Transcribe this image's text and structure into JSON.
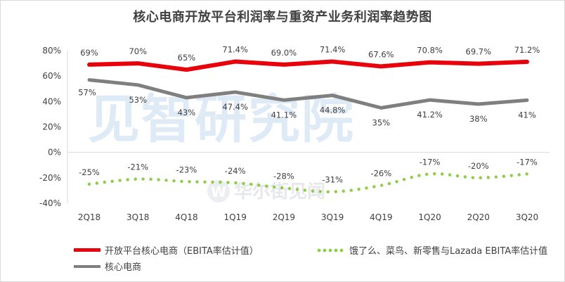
{
  "chart_data": {
    "type": "line",
    "title": "核心电商开放平台利润率与重资产业务利润率趋势图",
    "categories": [
      "2Q18",
      "3Q18",
      "4Q18",
      "1Q19",
      "2Q19",
      "3Q19",
      "4Q19",
      "1Q20",
      "2Q20",
      "3Q20"
    ],
    "y_ticks": [
      "80%",
      "60%",
      "40%",
      "20%",
      "0%",
      "-20%",
      "-40%"
    ],
    "ylim": [
      -40,
      80
    ],
    "grid": false,
    "legend_position": "bottom",
    "series": [
      {
        "name": "开放平台核心电商（EBITA率估计值）",
        "color": "#e8000b",
        "style": "solid-thick",
        "values": [
          69,
          70,
          65,
          71.4,
          69.0,
          71.4,
          67.6,
          70.8,
          69.7,
          71.2
        ],
        "labels": [
          "69%",
          "70%",
          "65%",
          "71.4%",
          "69.0%",
          "71.4%",
          "67.6%",
          "70.8%",
          "69.7%",
          "71.2%"
        ]
      },
      {
        "name": "核心电商",
        "color": "#7f7f7f",
        "style": "solid",
        "values": [
          57,
          53,
          43,
          47.4,
          41.1,
          44.8,
          35,
          41.2,
          38,
          41
        ],
        "labels": [
          "57%",
          "53%",
          "43%",
          "47.4%",
          "41.1%",
          "44.8%",
          "35%",
          "41.2%",
          "38%",
          "41%"
        ]
      },
      {
        "name": "饿了么、菜鸟、新零售与Lazada EBITA率估计值",
        "color": "#8fce4a",
        "style": "dotted",
        "values": [
          -25,
          -21,
          -23,
          -24,
          -28,
          -31,
          -26,
          -17,
          -20,
          -17
        ],
        "labels": [
          "-25%",
          "-21%",
          "-23%",
          "-24%",
          "-28%",
          "-31%",
          "-26%",
          "-17%",
          "-20%",
          "-17%"
        ]
      }
    ]
  },
  "watermarks": {
    "main": "见智研究院",
    "secondary": "华尔街见闻",
    "secondary_badge": "W"
  }
}
